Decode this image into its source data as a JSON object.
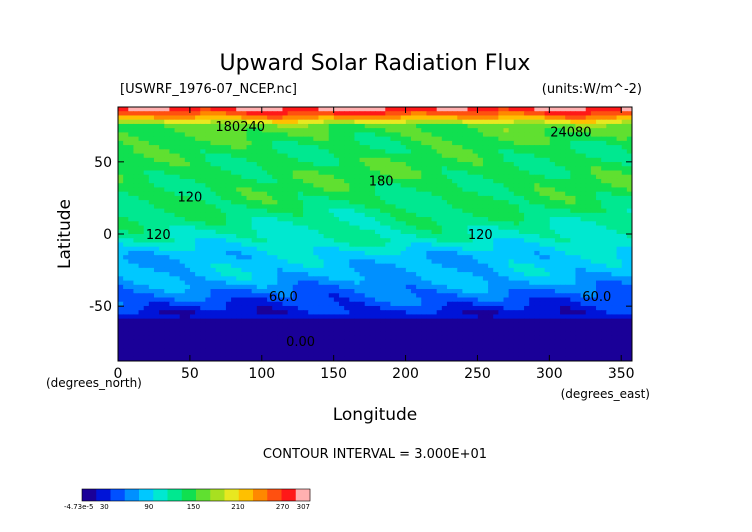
{
  "chart_data": {
    "type": "heatmap",
    "title": "Upward Solar Radiation Flux",
    "file_label": "[USWRF_1976-07_NCEP.nc]",
    "units_label": "(units:W/m^-2)",
    "xlabel": "Longitude",
    "ylabel": "Latitude",
    "x_unit_label": "(degrees_east)",
    "y_unit_label": "(degrees_north)",
    "xlim": [
      0,
      357.5
    ],
    "ylim": [
      -88,
      88
    ],
    "x_ticks": [
      0,
      50,
      100,
      150,
      200,
      250,
      300,
      350
    ],
    "y_ticks": [
      -50,
      0,
      50
    ],
    "contour_interval_text": "CONTOUR INTERVAL = 3.000E+01",
    "contour_labels": [
      {
        "text": "180240",
        "lon": 85,
        "lat": 75
      },
      {
        "text": "24080",
        "lon": 315,
        "lat": 71
      },
      {
        "text": "180",
        "lon": 183,
        "lat": 37
      },
      {
        "text": "120",
        "lon": 50,
        "lat": 26
      },
      {
        "text": "120",
        "lon": 28,
        "lat": 0
      },
      {
        "text": "120",
        "lon": 252,
        "lat": 0
      },
      {
        "text": "60.0",
        "lon": 115,
        "lat": -43
      },
      {
        "text": "60.0",
        "lon": 333,
        "lat": -43
      },
      {
        "text": "0.00",
        "lon": 127,
        "lat": -74
      }
    ],
    "latitudinal_profile": [
      {
        "lat": 88,
        "value": 300
      },
      {
        "lat": 82,
        "value": 250
      },
      {
        "lat": 75,
        "value": 160
      },
      {
        "lat": 60,
        "value": 140
      },
      {
        "lat": 40,
        "value": 145
      },
      {
        "lat": 20,
        "value": 135
      },
      {
        "lat": 5,
        "value": 120
      },
      {
        "lat": -5,
        "value": 110
      },
      {
        "lat": -15,
        "value": 85
      },
      {
        "lat": -30,
        "value": 80
      },
      {
        "lat": -40,
        "value": 60
      },
      {
        "lat": -50,
        "value": 40
      },
      {
        "lat": -60,
        "value": 15
      },
      {
        "lat": -75,
        "value": 0
      },
      {
        "lat": -88,
        "value": 0
      }
    ],
    "colorbar": {
      "labels": [
        "-4.73e-5",
        "30",
        "90",
        "150",
        "210",
        "270",
        "307"
      ],
      "label_values": [
        0,
        30,
        90,
        150,
        210,
        270,
        307
      ],
      "min": 0,
      "max": 307,
      "colors": [
        "#1a0098",
        "#0014d8",
        "#0050ff",
        "#0090ff",
        "#00c8ff",
        "#00e8d0",
        "#00e890",
        "#10e050",
        "#60e030",
        "#a8e020",
        "#e8e820",
        "#ffc000",
        "#ff8800",
        "#ff5010",
        "#ff1818",
        "#ffb0b0"
      ]
    },
    "grid": false
  }
}
